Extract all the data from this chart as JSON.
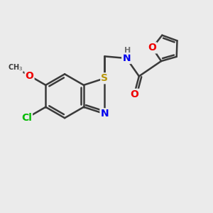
{
  "background_color": "#ebebeb",
  "bond_color": "#3a3a3a",
  "bond_width": 1.8,
  "atom_colors": {
    "S": "#b8960a",
    "N": "#0000ee",
    "O": "#ee0000",
    "Cl": "#00bb00",
    "C": "#3a3a3a",
    "H": "#707070"
  },
  "font_size": 10,
  "fig_size": [
    3.0,
    3.0
  ],
  "dpi": 100
}
